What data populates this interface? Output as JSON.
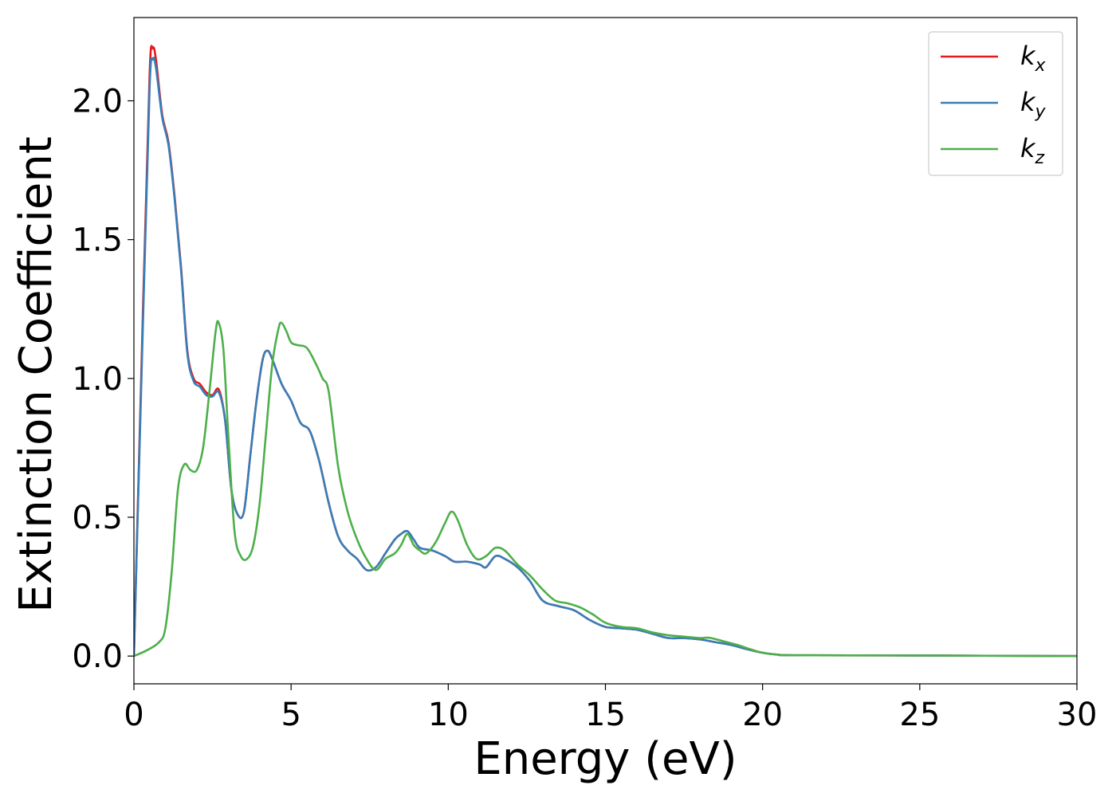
{
  "chart_data": {
    "type": "line",
    "title": "",
    "xlabel": "Energy (eV)",
    "ylabel": "Extinction Coefficient",
    "xlim": [
      0,
      30
    ],
    "ylim": [
      -0.1,
      2.3
    ],
    "xticks": [
      0,
      5,
      10,
      15,
      20,
      25,
      30
    ],
    "xtick_labels": [
      "0",
      "5",
      "10",
      "15",
      "20",
      "25",
      "30"
    ],
    "yticks": [
      0.0,
      0.5,
      1.0,
      1.5,
      2.0
    ],
    "ytick_labels": [
      "0.0",
      "0.5",
      "1.0",
      "1.5",
      "2.0"
    ],
    "grid": false,
    "legend_position": "top-right",
    "series": [
      {
        "name": "k_x",
        "legend_base": "k",
        "legend_sub": "x",
        "color": "#e41a1c",
        "points": [
          [
            0,
            0
          ],
          [
            0.3,
            1.3
          ],
          [
            0.5,
            2.1
          ],
          [
            0.6,
            2.19
          ],
          [
            0.7,
            2.15
          ],
          [
            0.9,
            1.95
          ],
          [
            1.1,
            1.85
          ],
          [
            1.3,
            1.65
          ],
          [
            1.5,
            1.4
          ],
          [
            1.7,
            1.1
          ],
          [
            1.9,
            1.0
          ],
          [
            2.1,
            0.98
          ],
          [
            2.3,
            0.95
          ],
          [
            2.5,
            0.94
          ],
          [
            2.7,
            0.96
          ],
          [
            2.9,
            0.85
          ],
          [
            3.1,
            0.6
          ],
          [
            3.3,
            0.51
          ],
          [
            3.5,
            0.52
          ],
          [
            3.7,
            0.72
          ],
          [
            3.9,
            0.92
          ],
          [
            4.1,
            1.07
          ],
          [
            4.25,
            1.1
          ],
          [
            4.4,
            1.07
          ],
          [
            4.7,
            0.98
          ],
          [
            5.0,
            0.92
          ],
          [
            5.3,
            0.84
          ],
          [
            5.6,
            0.81
          ],
          [
            5.9,
            0.7
          ],
          [
            6.2,
            0.55
          ],
          [
            6.5,
            0.43
          ],
          [
            6.8,
            0.38
          ],
          [
            7.1,
            0.35
          ],
          [
            7.4,
            0.31
          ],
          [
            7.7,
            0.32
          ],
          [
            8.0,
            0.37
          ],
          [
            8.3,
            0.42
          ],
          [
            8.5,
            0.44
          ],
          [
            8.7,
            0.45
          ],
          [
            8.9,
            0.42
          ],
          [
            9.1,
            0.39
          ],
          [
            9.5,
            0.38
          ],
          [
            9.9,
            0.36
          ],
          [
            10.2,
            0.34
          ],
          [
            10.6,
            0.34
          ],
          [
            11.0,
            0.33
          ],
          [
            11.2,
            0.32
          ],
          [
            11.5,
            0.36
          ],
          [
            11.8,
            0.35
          ],
          [
            12.2,
            0.32
          ],
          [
            12.6,
            0.27
          ],
          [
            13.0,
            0.2
          ],
          [
            13.5,
            0.18
          ],
          [
            14.0,
            0.165
          ],
          [
            14.5,
            0.13
          ],
          [
            15.0,
            0.105
          ],
          [
            15.5,
            0.1
          ],
          [
            16.0,
            0.095
          ],
          [
            16.5,
            0.08
          ],
          [
            17.0,
            0.065
          ],
          [
            17.5,
            0.065
          ],
          [
            18.0,
            0.06
          ],
          [
            18.5,
            0.05
          ],
          [
            19.0,
            0.04
          ],
          [
            19.5,
            0.025
          ],
          [
            20.0,
            0.012
          ],
          [
            20.5,
            0.005
          ],
          [
            21.0,
            0.003
          ],
          [
            25.0,
            0.002
          ],
          [
            30.0,
            0.0
          ]
        ]
      },
      {
        "name": "k_y",
        "legend_base": "k",
        "legend_sub": "y",
        "color": "#377eb8",
        "points": [
          [
            0,
            0
          ],
          [
            0.3,
            1.25
          ],
          [
            0.5,
            2.05
          ],
          [
            0.6,
            2.15
          ],
          [
            0.7,
            2.12
          ],
          [
            0.9,
            1.94
          ],
          [
            1.1,
            1.84
          ],
          [
            1.3,
            1.64
          ],
          [
            1.5,
            1.39
          ],
          [
            1.7,
            1.09
          ],
          [
            1.9,
            0.99
          ],
          [
            2.1,
            0.97
          ],
          [
            2.3,
            0.94
          ],
          [
            2.5,
            0.935
          ],
          [
            2.7,
            0.95
          ],
          [
            2.9,
            0.85
          ],
          [
            3.1,
            0.6
          ],
          [
            3.3,
            0.51
          ],
          [
            3.5,
            0.52
          ],
          [
            3.7,
            0.72
          ],
          [
            3.9,
            0.92
          ],
          [
            4.1,
            1.07
          ],
          [
            4.25,
            1.1
          ],
          [
            4.4,
            1.07
          ],
          [
            4.7,
            0.98
          ],
          [
            5.0,
            0.92
          ],
          [
            5.3,
            0.84
          ],
          [
            5.6,
            0.81
          ],
          [
            5.9,
            0.7
          ],
          [
            6.2,
            0.55
          ],
          [
            6.5,
            0.43
          ],
          [
            6.8,
            0.38
          ],
          [
            7.1,
            0.35
          ],
          [
            7.4,
            0.31
          ],
          [
            7.7,
            0.32
          ],
          [
            8.0,
            0.37
          ],
          [
            8.3,
            0.42
          ],
          [
            8.5,
            0.44
          ],
          [
            8.7,
            0.45
          ],
          [
            8.9,
            0.42
          ],
          [
            9.1,
            0.39
          ],
          [
            9.5,
            0.38
          ],
          [
            9.9,
            0.36
          ],
          [
            10.2,
            0.34
          ],
          [
            10.6,
            0.34
          ],
          [
            11.0,
            0.33
          ],
          [
            11.2,
            0.32
          ],
          [
            11.5,
            0.36
          ],
          [
            11.8,
            0.35
          ],
          [
            12.2,
            0.32
          ],
          [
            12.6,
            0.27
          ],
          [
            13.0,
            0.2
          ],
          [
            13.5,
            0.18
          ],
          [
            14.0,
            0.165
          ],
          [
            14.5,
            0.13
          ],
          [
            15.0,
            0.105
          ],
          [
            15.5,
            0.1
          ],
          [
            16.0,
            0.095
          ],
          [
            16.5,
            0.08
          ],
          [
            17.0,
            0.065
          ],
          [
            17.5,
            0.065
          ],
          [
            18.0,
            0.06
          ],
          [
            18.5,
            0.05
          ],
          [
            19.0,
            0.04
          ],
          [
            19.5,
            0.025
          ],
          [
            20.0,
            0.012
          ],
          [
            20.5,
            0.005
          ],
          [
            21.0,
            0.003
          ],
          [
            25.0,
            0.002
          ],
          [
            30.0,
            0.0
          ]
        ]
      },
      {
        "name": "k_z",
        "legend_base": "k",
        "legend_sub": "z",
        "color": "#4daf4a",
        "points": [
          [
            0,
            0
          ],
          [
            0.4,
            0.02
          ],
          [
            0.8,
            0.05
          ],
          [
            1.0,
            0.1
          ],
          [
            1.2,
            0.3
          ],
          [
            1.4,
            0.6
          ],
          [
            1.6,
            0.69
          ],
          [
            1.8,
            0.67
          ],
          [
            2.0,
            0.67
          ],
          [
            2.2,
            0.75
          ],
          [
            2.4,
            0.95
          ],
          [
            2.6,
            1.17
          ],
          [
            2.7,
            1.2
          ],
          [
            2.85,
            1.1
          ],
          [
            3.0,
            0.8
          ],
          [
            3.2,
            0.45
          ],
          [
            3.4,
            0.36
          ],
          [
            3.6,
            0.35
          ],
          [
            3.8,
            0.4
          ],
          [
            4.0,
            0.55
          ],
          [
            4.2,
            0.8
          ],
          [
            4.4,
            1.05
          ],
          [
            4.6,
            1.18
          ],
          [
            4.7,
            1.2
          ],
          [
            4.85,
            1.17
          ],
          [
            5.0,
            1.13
          ],
          [
            5.2,
            1.12
          ],
          [
            5.5,
            1.11
          ],
          [
            5.8,
            1.05
          ],
          [
            6.0,
            1.0
          ],
          [
            6.2,
            0.95
          ],
          [
            6.5,
            0.68
          ],
          [
            6.8,
            0.52
          ],
          [
            7.1,
            0.42
          ],
          [
            7.4,
            0.35
          ],
          [
            7.7,
            0.31
          ],
          [
            8.0,
            0.35
          ],
          [
            8.3,
            0.37
          ],
          [
            8.5,
            0.4
          ],
          [
            8.7,
            0.44
          ],
          [
            8.9,
            0.4
          ],
          [
            9.1,
            0.38
          ],
          [
            9.3,
            0.37
          ],
          [
            9.6,
            0.41
          ],
          [
            9.9,
            0.48
          ],
          [
            10.1,
            0.52
          ],
          [
            10.3,
            0.49
          ],
          [
            10.6,
            0.4
          ],
          [
            10.9,
            0.35
          ],
          [
            11.2,
            0.36
          ],
          [
            11.5,
            0.39
          ],
          [
            11.8,
            0.38
          ],
          [
            12.2,
            0.33
          ],
          [
            12.6,
            0.29
          ],
          [
            13.0,
            0.24
          ],
          [
            13.4,
            0.2
          ],
          [
            13.8,
            0.19
          ],
          [
            14.2,
            0.175
          ],
          [
            14.6,
            0.15
          ],
          [
            15.0,
            0.12
          ],
          [
            15.5,
            0.105
          ],
          [
            16.0,
            0.1
          ],
          [
            16.5,
            0.085
          ],
          [
            17.0,
            0.075
          ],
          [
            17.5,
            0.07
          ],
          [
            18.0,
            0.065
          ],
          [
            18.3,
            0.066
          ],
          [
            18.7,
            0.055
          ],
          [
            19.2,
            0.04
          ],
          [
            19.6,
            0.025
          ],
          [
            20.0,
            0.012
          ],
          [
            20.5,
            0.005
          ],
          [
            21.0,
            0.003
          ],
          [
            25.0,
            0.002
          ],
          [
            30.0,
            0.0
          ]
        ]
      }
    ]
  }
}
